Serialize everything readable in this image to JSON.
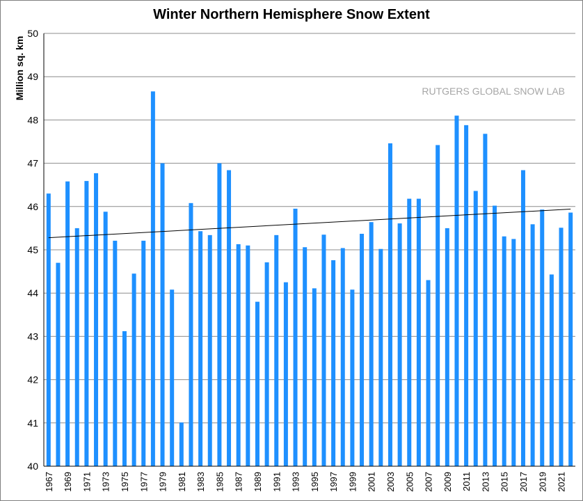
{
  "chart_data": {
    "type": "bar",
    "title": "Winter Northern Hemisphere Snow Extent",
    "ylabel": "Million sq. km",
    "xlabel": "",
    "annotation": "RUTGERS GLOBAL SNOW LAB",
    "ylim": [
      40,
      50
    ],
    "yticks": [
      40,
      41,
      42,
      43,
      44,
      45,
      46,
      47,
      48,
      49,
      50
    ],
    "grid": true,
    "bar_color": "#1e90ff",
    "trend_color": "#000000",
    "categories": [
      "1967",
      "1968",
      "1969",
      "1970",
      "1971",
      "1972",
      "1973",
      "1974",
      "1975",
      "1976",
      "1977",
      "1978",
      "1979",
      "1980",
      "1981",
      "1982",
      "1983",
      "1984",
      "1985",
      "1986",
      "1987",
      "1988",
      "1989",
      "1990",
      "1991",
      "1992",
      "1993",
      "1994",
      "1995",
      "1996",
      "1997",
      "1998",
      "1999",
      "2000",
      "2001",
      "2002",
      "2003",
      "2004",
      "2005",
      "2006",
      "2007",
      "2008",
      "2009",
      "2010",
      "2011",
      "2012",
      "2013",
      "2014",
      "2015",
      "2016",
      "2017",
      "2018",
      "2019",
      "2020",
      "2021",
      "2022"
    ],
    "tick_labels": [
      "1967",
      "1969",
      "1971",
      "1973",
      "1975",
      "1977",
      "1979",
      "1981",
      "1983",
      "1985",
      "1987",
      "1989",
      "1991",
      "1993",
      "1995",
      "1997",
      "1999",
      "2001",
      "2003",
      "2005",
      "2007",
      "2009",
      "2011",
      "2013",
      "2015",
      "2017",
      "2019",
      "2021"
    ],
    "values": [
      46.3,
      44.7,
      46.58,
      45.5,
      46.59,
      46.77,
      45.88,
      45.21,
      43.12,
      44.45,
      45.21,
      48.66,
      47.0,
      44.08,
      41.01,
      46.08,
      45.43,
      45.34,
      47.0,
      46.84,
      45.13,
      45.1,
      43.8,
      44.71,
      45.34,
      44.25,
      45.95,
      45.06,
      44.11,
      45.35,
      44.76,
      45.04,
      44.08,
      45.37,
      45.64,
      45.02,
      47.46,
      45.61,
      46.18,
      46.18,
      44.3,
      47.42,
      45.5,
      48.1,
      47.88,
      46.36,
      47.68,
      46.02,
      45.31,
      45.25,
      46.84,
      45.59,
      45.93,
      44.43,
      45.51,
      45.86
    ],
    "trend": {
      "start": 45.28,
      "end": 45.94
    }
  }
}
